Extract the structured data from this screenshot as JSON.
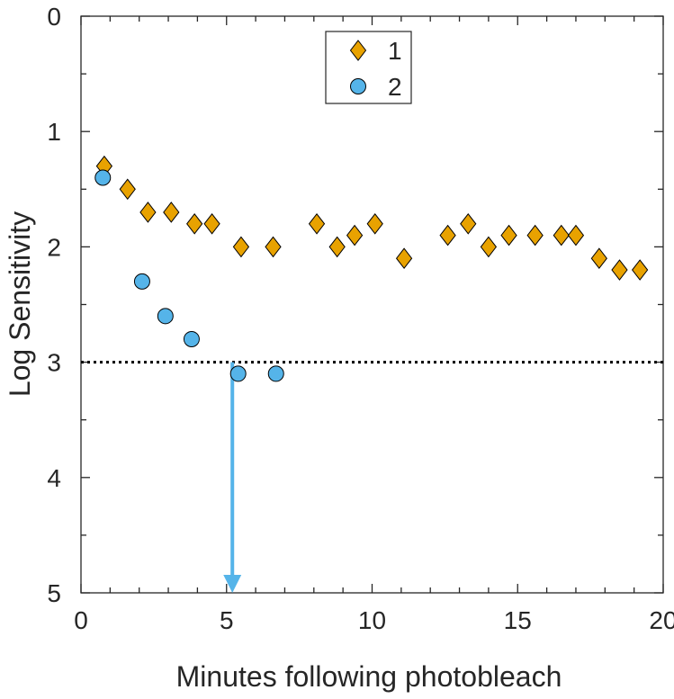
{
  "chart_data": {
    "type": "scatter",
    "xlabel": "Minutes following photobleach",
    "ylabel": "Log Sensitivity",
    "xlim": [
      0,
      20
    ],
    "ylim": [
      0,
      5
    ],
    "y_reversed": true,
    "x_ticks": [
      0,
      5,
      10,
      15,
      20
    ],
    "x_tick_labels": [
      "0",
      "5",
      "10",
      "15",
      "20"
    ],
    "y_ticks": [
      0,
      1,
      2,
      3,
      4,
      5
    ],
    "y_tick_labels": [
      "0",
      "1",
      "2",
      "3",
      "4",
      "5"
    ],
    "grid": false,
    "legend_position": "top-center",
    "series": [
      {
        "name": "1",
        "marker": "diamond",
        "color": "#E8A200",
        "points": [
          [
            0.8,
            1.3
          ],
          [
            1.6,
            1.5
          ],
          [
            2.3,
            1.7
          ],
          [
            3.1,
            1.7
          ],
          [
            3.9,
            1.8
          ],
          [
            4.5,
            1.8
          ],
          [
            5.5,
            2.0
          ],
          [
            6.6,
            2.0
          ],
          [
            8.1,
            1.8
          ],
          [
            8.8,
            2.0
          ],
          [
            9.4,
            1.9
          ],
          [
            10.1,
            1.8
          ],
          [
            11.1,
            2.1
          ],
          [
            12.6,
            1.9
          ],
          [
            13.3,
            1.8
          ],
          [
            14.0,
            2.0
          ],
          [
            14.7,
            1.9
          ],
          [
            15.6,
            1.9
          ],
          [
            16.5,
            1.9
          ],
          [
            17.0,
            1.9
          ],
          [
            17.8,
            2.1
          ],
          [
            18.5,
            2.2
          ],
          [
            19.2,
            2.2
          ]
        ]
      },
      {
        "name": "2",
        "marker": "circle",
        "color": "#55B4E9",
        "points": [
          [
            0.75,
            1.4
          ],
          [
            2.1,
            2.3
          ],
          [
            2.9,
            2.6
          ],
          [
            3.8,
            2.8
          ],
          [
            5.4,
            3.1
          ],
          [
            6.7,
            3.1
          ]
        ]
      }
    ],
    "threshold_line": {
      "y": 3,
      "style": "dotted",
      "color": "#000000"
    },
    "arrow": {
      "x": 5.2,
      "y_from": 3,
      "y_to": 5,
      "color": "#55B4E9"
    }
  }
}
